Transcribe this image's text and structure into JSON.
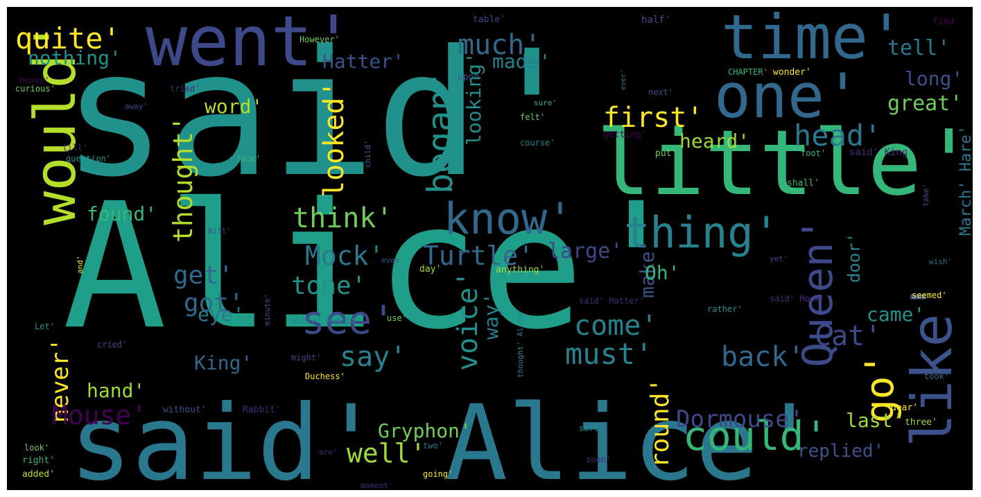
{
  "colors": {
    "background": "#000000",
    "frame": "#ffffff"
  },
  "words": [
    {
      "text": "said'",
      "color": "#21918c"
    },
    {
      "text": "Alice'",
      "color": "#1f9e89"
    },
    {
      "text": "said' Alice'",
      "color": "#2a788e"
    },
    {
      "text": "little'",
      "color": "#35b779"
    },
    {
      "text": "went'",
      "color": "#3e4989"
    },
    {
      "text": "time'",
      "color": "#31688e"
    },
    {
      "text": "one'",
      "color": "#31688e"
    },
    {
      "text": "would'",
      "color": "#b5de2b"
    },
    {
      "text": "like'",
      "color": "#3b528b"
    },
    {
      "text": "know'",
      "color": "#31688e"
    },
    {
      "text": "thing'",
      "color": "#26828e"
    },
    {
      "text": "could'",
      "color": "#35b779"
    },
    {
      "text": "quite'",
      "color": "#fde725"
    },
    {
      "text": "nothing'",
      "color": "#21918c"
    },
    {
      "text": "much'",
      "color": "#31688e"
    },
    {
      "text": "made'",
      "color": "#26828e"
    },
    {
      "text": "Hatter'",
      "color": "#3b528b"
    },
    {
      "text": "began'",
      "color": "#21918c"
    },
    {
      "text": "looked'",
      "color": "#fde725"
    },
    {
      "text": "thought'",
      "color": "#b5de2b"
    },
    {
      "text": "word'",
      "color": "#b5de2b"
    },
    {
      "text": "first'",
      "color": "#fde725"
    },
    {
      "text": "heard'",
      "color": "#a0da39"
    },
    {
      "text": "head'",
      "color": "#2a788e"
    },
    {
      "text": "great'",
      "color": "#6ece58"
    },
    {
      "text": "long'",
      "color": "#3b528b"
    },
    {
      "text": "tell'",
      "color": "#2a788e"
    },
    {
      "text": "make'",
      "color": "#3b528b"
    },
    {
      "text": "looking'",
      "color": "#21918c"
    },
    {
      "text": "think'",
      "color": "#6ece58"
    },
    {
      "text": "found'",
      "color": "#35b779"
    },
    {
      "text": "Mock'",
      "color": "#2a788e"
    },
    {
      "text": "Turtle'",
      "color": "#31688e"
    },
    {
      "text": "large'",
      "color": "#3e4989"
    },
    {
      "text": "Queen'",
      "color": "#3e4989"
    },
    {
      "text": "March' Hare'",
      "color": "#2a788e"
    },
    {
      "text": "get'",
      "color": "#31688e"
    },
    {
      "text": "tone'",
      "color": "#21918c"
    },
    {
      "text": "got'",
      "color": "#31688e"
    },
    {
      "text": "see'",
      "color": "#3e4989"
    },
    {
      "text": "Oh'",
      "color": "#35b779"
    },
    {
      "text": "door'",
      "color": "#26828e"
    },
    {
      "text": "come'",
      "color": "#26828e"
    },
    {
      "text": "way'",
      "color": "#26828e"
    },
    {
      "text": "voice'",
      "color": "#21918c"
    },
    {
      "text": "eye'",
      "color": "#2a788e"
    },
    {
      "text": "say'",
      "color": "#26828e"
    },
    {
      "text": "must'",
      "color": "#26828e"
    },
    {
      "text": "came'",
      "color": "#21918c"
    },
    {
      "text": "back'",
      "color": "#31688e"
    },
    {
      "text": "Cat'",
      "color": "#3e4989"
    },
    {
      "text": "go'",
      "color": "#fde725"
    },
    {
      "text": "never'",
      "color": "#fde725"
    },
    {
      "text": "King'",
      "color": "#31688e"
    },
    {
      "text": "hand'",
      "color": "#a0da39"
    },
    {
      "text": "Mouse'",
      "color": "#440154"
    },
    {
      "text": "round'",
      "color": "#fde725"
    },
    {
      "text": "Dormouse'",
      "color": "#3e4989"
    },
    {
      "text": "last'",
      "color": "#a0da39"
    },
    {
      "text": "Gryphon'",
      "color": "#6ece58"
    },
    {
      "text": "well'",
      "color": "#a0da39"
    },
    {
      "text": "replied'",
      "color": "#3b528b"
    },
    {
      "text": "table'",
      "color": "#3e4989"
    },
    {
      "text": "half'",
      "color": "#3e4989"
    },
    {
      "text": "find'",
      "color": "#440154"
    },
    {
      "text": "However'",
      "color": "#6ece58"
    },
    {
      "text": "upon'",
      "color": "#3b528b"
    },
    {
      "text": "house'",
      "color": "#440154"
    },
    {
      "text": "curious'",
      "color": "#6ece58"
    },
    {
      "text": "tried'",
      "color": "#482878"
    },
    {
      "text": "CHAPTER'",
      "color": "#35b779"
    },
    {
      "text": "wonder'",
      "color": "#fde725"
    },
    {
      "text": "next'",
      "color": "#3b528b"
    },
    {
      "text": "ever'",
      "color": "#2a788e"
    },
    {
      "text": "away'",
      "color": "#3e4989"
    },
    {
      "text": "sure'",
      "color": "#35b779"
    },
    {
      "text": "felt'",
      "color": "#6ece58"
    },
    {
      "text": "till'",
      "color": "#482878"
    },
    {
      "text": "question'",
      "color": "#21918c"
    },
    {
      "text": "face'",
      "color": "#35b779"
    },
    {
      "text": "child'",
      "color": "#31688e"
    },
    {
      "text": "course'",
      "color": "#26828e"
    },
    {
      "text": "getting'",
      "color": "#440154"
    },
    {
      "text": "put'",
      "color": "#6ece58"
    },
    {
      "text": "foot'",
      "color": "#35b779"
    },
    {
      "text": "said' King'",
      "color": "#482878"
    },
    {
      "text": "shall'",
      "color": "#35b779"
    },
    {
      "text": "take'",
      "color": "#3b528b"
    },
    {
      "text": "Bill'",
      "color": "#3b528b"
    },
    {
      "text": "even'",
      "color": "#3b528b"
    },
    {
      "text": "day'",
      "color": "#a0da39"
    },
    {
      "text": "yet'",
      "color": "#3e4989"
    },
    {
      "text": "and'",
      "color": "#fde725"
    },
    {
      "text": "anything'",
      "color": "#a0da39"
    },
    {
      "text": "wish'",
      "color": "#2a788e"
    },
    {
      "text": "Let'",
      "color": "#21918c"
    },
    {
      "text": "minute'",
      "color": "#3b528b"
    },
    {
      "text": "said' Hatter'",
      "color": "#482878"
    },
    {
      "text": "said' Mock'",
      "color": "#482878"
    },
    {
      "text": "rather'",
      "color": "#21918c"
    },
    {
      "text": "seemed'",
      "color": "#fde725"
    },
    {
      "text": "use'",
      "color": "#6ece58"
    },
    {
      "text": "White' Rabbit'",
      "color": "#26828e"
    },
    {
      "text": "thought' Alice'",
      "color": "#26828e"
    },
    {
      "text": "might'",
      "color": "#3e4989"
    },
    {
      "text": "cried'",
      "color": "#3e4989"
    },
    {
      "text": "Duchess'",
      "color": "#fde725"
    },
    {
      "text": "took'",
      "color": "#31688e"
    },
    {
      "text": "without'",
      "color": "#3b528b"
    },
    {
      "text": "Rabbit'",
      "color": "#482878"
    },
    {
      "text": "dear'",
      "color": "#fde725"
    },
    {
      "text": "three'",
      "color": "#a0da39"
    },
    {
      "text": "sort'",
      "color": "#21918c"
    },
    {
      "text": "look'",
      "color": "#6ece58"
    },
    {
      "text": "two'",
      "color": "#2a788e"
    },
    {
      "text": "right'",
      "color": "#35b779"
    },
    {
      "text": "are'",
      "color": "#482878"
    },
    {
      "text": "soon'",
      "color": "#482878"
    },
    {
      "text": "added'",
      "color": "#b5de2b"
    },
    {
      "text": "going'",
      "color": "#fde725"
    },
    {
      "text": "moment'",
      "color": "#482878"
    }
  ]
}
